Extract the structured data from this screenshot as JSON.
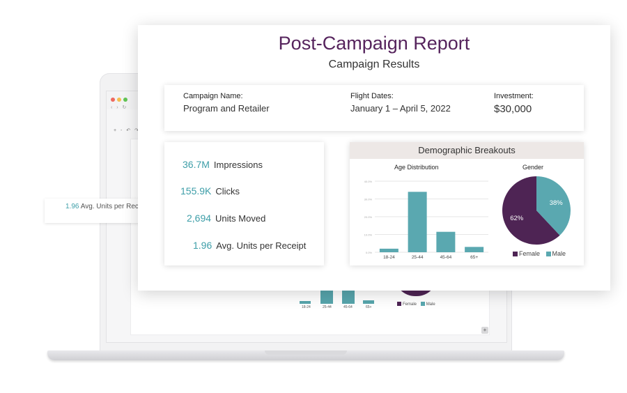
{
  "colors": {
    "brand_purple": "#56245d",
    "accent_teal": "#3d9ea8",
    "bar_teal": "#5aa8b0",
    "female": "#4e2454",
    "male": "#5aa8b0",
    "header_bg": "#ede8e6"
  },
  "report": {
    "title": "Post-Campaign Report",
    "subtitle": "Campaign Results",
    "campaign": {
      "label": "Campaign Name:",
      "value": "Program and Retailer"
    },
    "flight": {
      "label": "Flight Dates:",
      "value": "January 1 – April 5, 2022"
    },
    "investment": {
      "label": "Investment:",
      "value": "$30,000"
    },
    "kpis": [
      {
        "value": "36.7M",
        "label": "Impressions"
      },
      {
        "value": "155.9K",
        "label": "Clicks"
      },
      {
        "value": "2,694",
        "label": "Units Moved"
      },
      {
        "value": "1.96",
        "label": "Avg. Units per Receipt"
      }
    ],
    "demographics": {
      "header": "Demographic Breakouts",
      "age_title": "Age Distribution",
      "gender_title": "Gender",
      "legend": {
        "female": "Female",
        "male": "Male"
      }
    }
  },
  "chart_data": [
    {
      "type": "bar",
      "title": "Age Distribution",
      "categories": [
        "18-24",
        "25-44",
        "45-64",
        "65+"
      ],
      "values": [
        2,
        34,
        11.5,
        3
      ],
      "ylim": [
        0,
        40
      ],
      "yticks": [
        "0.0%",
        "10.0%",
        "20.0%",
        "30.0%",
        "40.0%"
      ],
      "grid": true
    },
    {
      "type": "pie",
      "title": "Gender",
      "labels": [
        "Female",
        "Male"
      ],
      "values": [
        62,
        38
      ],
      "slice_labels": [
        "62%",
        "38%"
      ],
      "legend": "bottom"
    }
  ],
  "background_window": {
    "kpi_value": "1.96",
    "kpi_label": "Avg. Units per Receipt",
    "categories": [
      "18-24",
      "25-44",
      "45-64",
      "65+"
    ],
    "legend_female": "Female",
    "legend_male": "Male"
  }
}
